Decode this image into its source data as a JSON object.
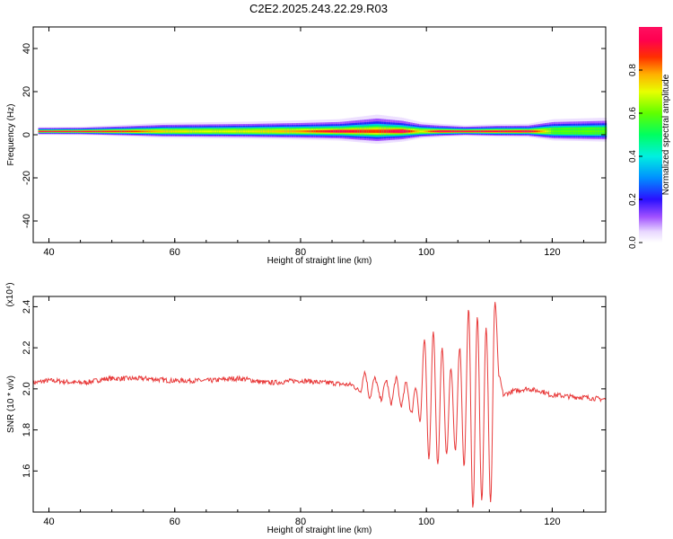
{
  "title": "C2E2.2025.243.22.29.R03",
  "chart_data": [
    {
      "type": "heatmap",
      "title": "C2E2.2025.243.22.29.R03",
      "xlabel": "Height of straight line (km)",
      "ylabel": "Frequency (Hz)",
      "xlim": [
        37.5,
        128.5
      ],
      "ylim": [
        -50,
        50
      ],
      "xticks": [
        "40",
        "60",
        "80",
        "100",
        "120"
      ],
      "yticks": [
        "40",
        "20",
        "0",
        "-20",
        "-40"
      ],
      "colorbar": {
        "label": "Normalized spectral amplitude",
        "range": [
          0,
          1
        ],
        "ticks": [
          "0.0",
          "0.2",
          "0.4",
          "0.6",
          "0.8"
        ]
      },
      "band_center_hz": 1.5,
      "band_profile": [
        {
          "x": 38.5,
          "halfwidth": 1.5,
          "peak": 1.0
        },
        {
          "x": 45,
          "halfwidth": 1.6,
          "peak": 0.95
        },
        {
          "x": 52,
          "halfwidth": 2.2,
          "peak": 0.9
        },
        {
          "x": 58,
          "halfwidth": 2.8,
          "peak": 0.75
        },
        {
          "x": 65,
          "halfwidth": 3.0,
          "peak": 0.7
        },
        {
          "x": 72,
          "halfwidth": 3.2,
          "peak": 0.72
        },
        {
          "x": 80,
          "halfwidth": 3.6,
          "peak": 0.8
        },
        {
          "x": 86,
          "halfwidth": 4.0,
          "peak": 0.95
        },
        {
          "x": 92,
          "halfwidth": 5.5,
          "peak": 0.85
        },
        {
          "x": 96,
          "halfwidth": 4.5,
          "peak": 1.0
        },
        {
          "x": 99,
          "halfwidth": 3.0,
          "peak": 0.7
        },
        {
          "x": 102,
          "halfwidth": 2.5,
          "peak": 1.0
        },
        {
          "x": 106,
          "halfwidth": 2.0,
          "peak": 1.0
        },
        {
          "x": 111,
          "halfwidth": 2.4,
          "peak": 0.95
        },
        {
          "x": 116,
          "halfwidth": 2.5,
          "peak": 1.0
        },
        {
          "x": 120,
          "halfwidth": 4.0,
          "peak": 0.6
        },
        {
          "x": 128.5,
          "halfwidth": 4.5,
          "peak": 0.6
        }
      ]
    },
    {
      "type": "line",
      "xlabel": "Height of straight line (km)",
      "ylabel": "SNR (10 * v/v)",
      "yscale_label": "(x10⁴)",
      "xlim": [
        37.5,
        128.5
      ],
      "ylim": [
        1.4,
        2.45
      ],
      "xticks": [
        "40",
        "60",
        "80",
        "100",
        "120"
      ],
      "yticks": [
        "2.4",
        "2.2",
        "2.0",
        "1.8",
        "1.6"
      ],
      "color": "#e83a3a",
      "series": [
        {
          "name": "SNR",
          "x": [
            37.5,
            40,
            45,
            50,
            55,
            60,
            65,
            70,
            75,
            80,
            84,
            88,
            89.5,
            90.2,
            91,
            91.8,
            92.8,
            93.6,
            94.4,
            95.2,
            96,
            96.8,
            97.6,
            98.3,
            99,
            99.7,
            100.4,
            101.1,
            101.8,
            102.5,
            103.2,
            103.9,
            104.6,
            105.3,
            106,
            106.7,
            107.4,
            108.1,
            108.8,
            109.5,
            110.2,
            110.9,
            111.6,
            112.3,
            113,
            114,
            116,
            118,
            120,
            124,
            128.5
          ],
          "y": [
            2.03,
            2.04,
            2.03,
            2.05,
            2.05,
            2.04,
            2.04,
            2.05,
            2.03,
            2.04,
            2.03,
            2.02,
            1.99,
            2.08,
            1.96,
            2.05,
            1.95,
            2.04,
            1.93,
            2.05,
            1.92,
            2.03,
            1.88,
            2.01,
            1.84,
            2.24,
            1.66,
            2.28,
            1.63,
            2.2,
            1.68,
            2.1,
            1.7,
            2.2,
            1.62,
            2.39,
            1.42,
            2.35,
            1.46,
            2.3,
            1.45,
            2.42,
            2.05,
            1.97,
            1.98,
            1.99,
            2.0,
            1.99,
            1.97,
            1.96,
            1.95
          ]
        }
      ]
    }
  ]
}
